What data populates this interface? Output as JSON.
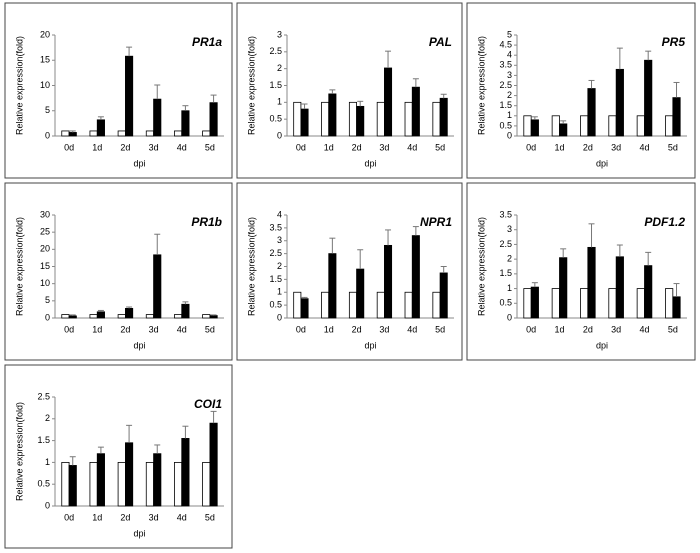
{
  "chart_data": [
    {
      "type": "bar",
      "title": "PR1a",
      "ylabel": "Relative expression(fold)",
      "xlabel": "dpi",
      "categories": [
        "0d",
        "1d",
        "2d",
        "3d",
        "4d",
        "5d"
      ],
      "series": [
        {
          "color": "#ffffff",
          "values": [
            1,
            1,
            1,
            1,
            1,
            1
          ]
        },
        {
          "color": "#000000",
          "values": [
            0.7,
            3.2,
            15.8,
            7.3,
            5.0,
            6.6
          ],
          "errors": [
            0.3,
            0.6,
            1.8,
            2.8,
            1.0,
            1.5
          ]
        }
      ],
      "ylim": [
        0,
        20
      ],
      "yticks": [
        0,
        5,
        10,
        15,
        20
      ]
    },
    {
      "type": "bar",
      "title": "PAL",
      "ylabel": "Relative expression(fold)",
      "xlabel": "dpi",
      "categories": [
        "0d",
        "1d",
        "2d",
        "3d",
        "4d",
        "5d"
      ],
      "series": [
        {
          "color": "#ffffff",
          "values": [
            1,
            1,
            1,
            1,
            1,
            1
          ]
        },
        {
          "color": "#000000",
          "values": [
            0.8,
            1.25,
            0.88,
            2.02,
            1.45,
            1.12
          ],
          "errors": [
            0.15,
            0.12,
            0.15,
            0.5,
            0.25,
            0.12
          ]
        }
      ],
      "ylim": [
        0,
        3
      ],
      "yticks": [
        0,
        0.5,
        1,
        1.5,
        2,
        2.5,
        3
      ]
    },
    {
      "type": "bar",
      "title": "PR5",
      "ylabel": "Relative expression(fold)",
      "xlabel": "dpi",
      "categories": [
        "0d",
        "1d",
        "2d",
        "3d",
        "4d",
        "5d"
      ],
      "series": [
        {
          "color": "#ffffff",
          "values": [
            1,
            1,
            1,
            1,
            1,
            1
          ]
        },
        {
          "color": "#000000",
          "values": [
            0.8,
            0.6,
            2.35,
            3.3,
            3.75,
            1.9
          ],
          "errors": [
            0.15,
            0.15,
            0.4,
            1.05,
            0.45,
            0.75
          ]
        }
      ],
      "ylim": [
        0,
        5
      ],
      "yticks": [
        0,
        0.5,
        1,
        1.5,
        2,
        2.5,
        3,
        3.5,
        4,
        4.5,
        5
      ]
    },
    {
      "type": "bar",
      "title": "PR1b",
      "ylabel": "Relative expression(fold)",
      "xlabel": "dpi",
      "categories": [
        "0d",
        "1d",
        "2d",
        "3d",
        "4d",
        "5d"
      ],
      "series": [
        {
          "color": "#ffffff",
          "values": [
            1,
            1,
            1,
            1,
            1,
            1
          ]
        },
        {
          "color": "#000000",
          "values": [
            0.6,
            1.8,
            2.8,
            18.4,
            4.0,
            0.7
          ],
          "errors": [
            0.3,
            0.4,
            0.4,
            6,
            0.7,
            0.2
          ]
        }
      ],
      "ylim": [
        0,
        30
      ],
      "yticks": [
        0,
        5,
        10,
        15,
        20,
        25,
        30
      ]
    },
    {
      "type": "bar",
      "title": "NPR1",
      "ylabel": "Relative expression(fold)",
      "xlabel": "dpi",
      "categories": [
        "0d",
        "1d",
        "2d",
        "3d",
        "4d",
        "5d"
      ],
      "series": [
        {
          "color": "#ffffff",
          "values": [
            1,
            1,
            1,
            1,
            1,
            1
          ]
        },
        {
          "color": "#000000",
          "values": [
            0.75,
            2.5,
            1.9,
            2.82,
            3.2,
            1.75
          ],
          "errors": [
            0.05,
            0.6,
            0.75,
            0.6,
            0.35,
            0.25
          ]
        }
      ],
      "ylim": [
        0,
        4
      ],
      "yticks": [
        0,
        0.5,
        1,
        1.5,
        2,
        2.5,
        3,
        3.5,
        4
      ]
    },
    {
      "type": "bar",
      "title": "PDF1.2",
      "ylabel": "Relative expression(fold)",
      "xlabel": "dpi",
      "categories": [
        "0d",
        "1d",
        "2d",
        "3d",
        "4d",
        "5d"
      ],
      "series": [
        {
          "color": "#ffffff",
          "values": [
            1,
            1,
            1,
            1,
            1,
            1
          ]
        },
        {
          "color": "#000000",
          "values": [
            1.05,
            2.05,
            2.4,
            2.08,
            1.78,
            0.72
          ],
          "errors": [
            0.15,
            0.3,
            0.8,
            0.4,
            0.45,
            0.45
          ]
        }
      ],
      "ylim": [
        0,
        3.5
      ],
      "yticks": [
        0,
        0.5,
        1,
        1.5,
        2,
        2.5,
        3,
        3.5
      ]
    },
    {
      "type": "bar",
      "title": "COI1",
      "ylabel": "Relative expression(fold)",
      "xlabel": "dpi",
      "categories": [
        "0d",
        "1d",
        "2d",
        "3d",
        "4d",
        "5d"
      ],
      "series": [
        {
          "color": "#ffffff",
          "values": [
            1,
            1,
            1,
            1,
            1,
            1
          ]
        },
        {
          "color": "#000000",
          "values": [
            0.93,
            1.2,
            1.45,
            1.2,
            1.55,
            1.9
          ],
          "errors": [
            0.2,
            0.15,
            0.4,
            0.2,
            0.28,
            0.27
          ]
        }
      ],
      "ylim": [
        0,
        2.5
      ],
      "yticks": [
        0,
        0.5,
        1,
        1.5,
        2,
        2.5
      ]
    }
  ]
}
